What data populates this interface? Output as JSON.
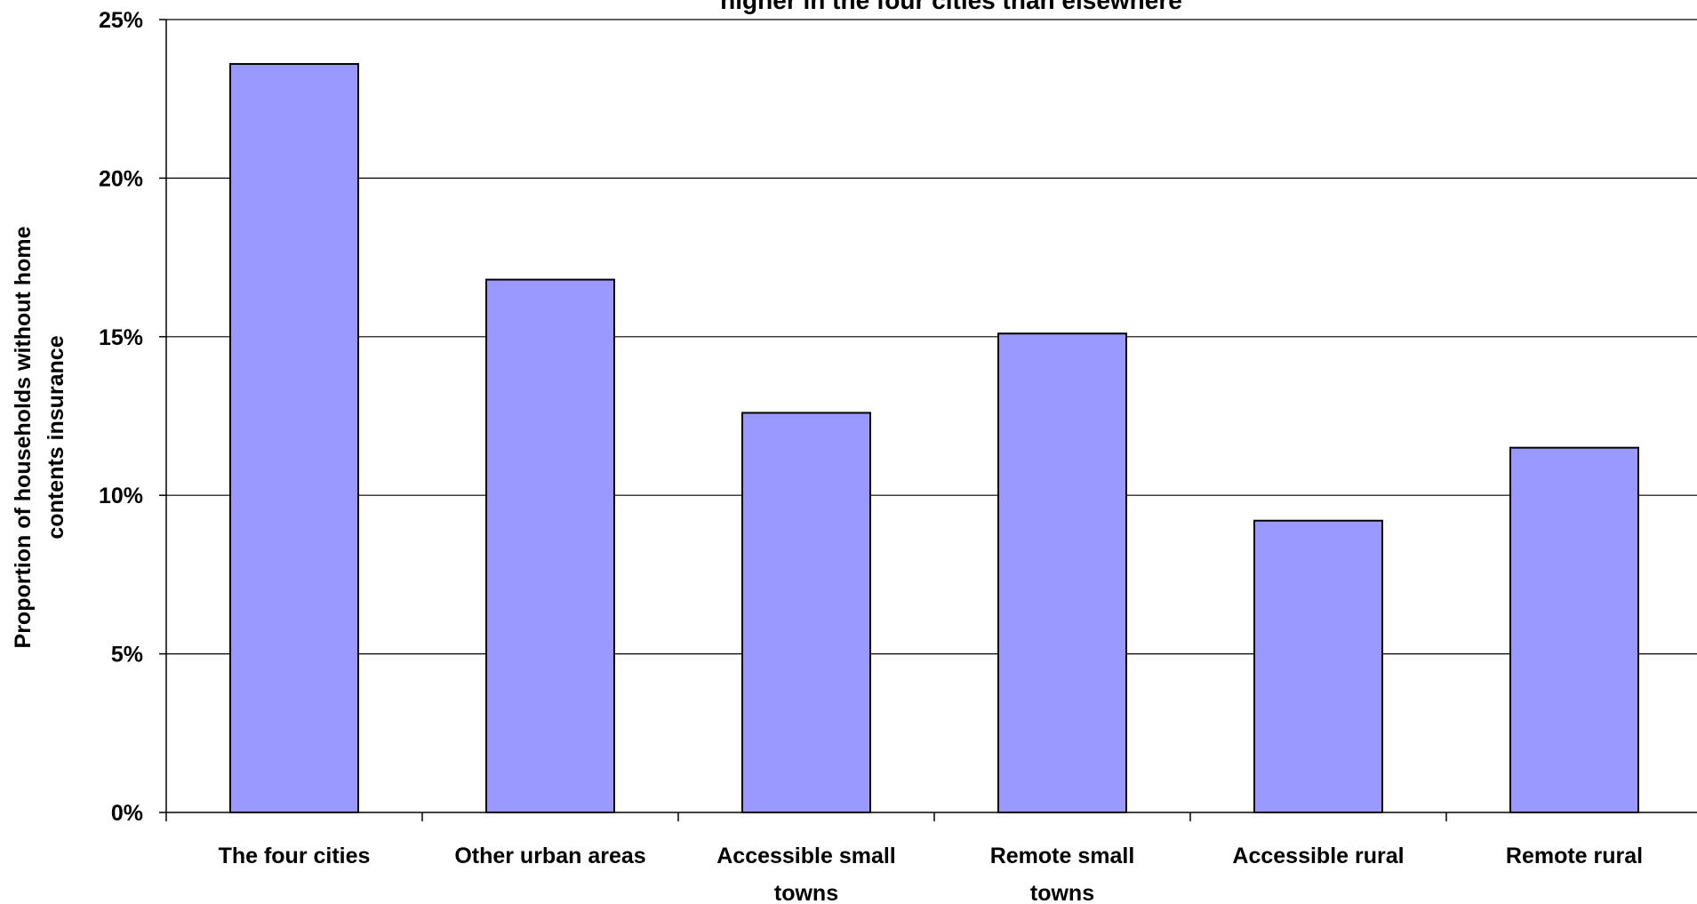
{
  "chart_data": {
    "type": "bar",
    "title": "higher in the four cities than elsewhere",
    "ylabel": [
      "Proportion of households without home",
      "contents insurance"
    ],
    "xlabel": "",
    "categories": [
      [
        "The four cities"
      ],
      [
        "Other urban areas"
      ],
      [
        "Accessible small",
        "towns"
      ],
      [
        "Remote small",
        "towns"
      ],
      [
        "Accessible rural"
      ],
      [
        "Remote rural"
      ]
    ],
    "values": [
      23.6,
      16.8,
      12.6,
      15.1,
      9.2,
      11.5
    ],
    "ylim": [
      0,
      25
    ],
    "yticks": [
      0,
      5,
      10,
      15,
      20,
      25
    ],
    "ytick_labels": [
      "0%",
      "5%",
      "10%",
      "15%",
      "20%",
      "25%"
    ],
    "grid": true,
    "bar_color": "#9999ff",
    "bar_edge_color": "#000000"
  }
}
